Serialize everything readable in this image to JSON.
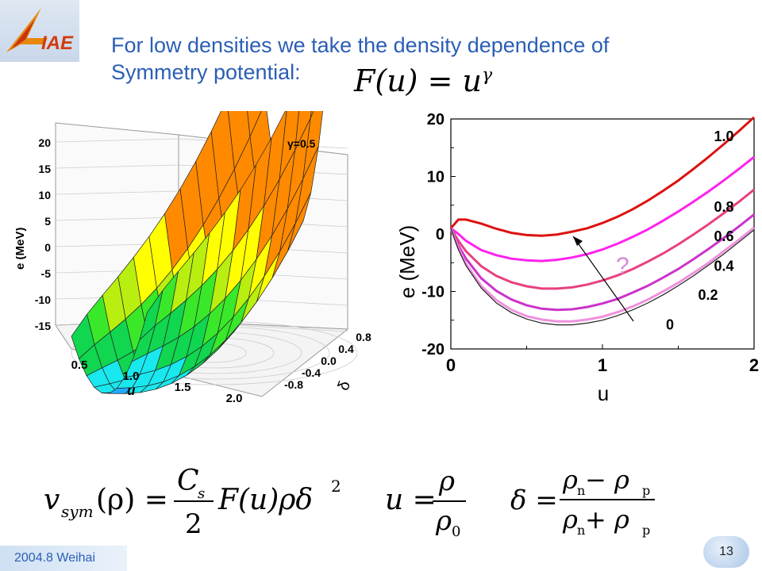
{
  "slide": {
    "logo_text": "IAE",
    "title_line1": "For low densities we take the density dependence of",
    "title_line2": "Symmetry potential:",
    "formula_top": {
      "lhs": "F(u) = u",
      "exp": "γ"
    },
    "footer_text": "2004.8 Weihai",
    "page_number": "13"
  },
  "chart_data": [
    {
      "type": "surface",
      "annotation": "γ=0.5",
      "zlabel": "e (MeV)",
      "xlabel": "u",
      "ylabel": "δ",
      "z_ticks": [
        "20",
        "15",
        "10",
        "5",
        "0",
        "-5",
        "-10",
        "-15"
      ],
      "x_ticks": [
        "0.5",
        "1.0",
        "1.5",
        "2.0"
      ],
      "y_ticks": [
        "0.8",
        "0.4",
        "0.0",
        "-0.4",
        "-0.8"
      ],
      "band_colors": [
        "#1e6bff",
        "#22aaff",
        "#19e8ee",
        "#10d650",
        "#3ae82a",
        "#b8ee10",
        "#ffff00",
        "#ff8a00"
      ]
    },
    {
      "type": "line",
      "xlabel": "u",
      "ylabel": "e (MeV)",
      "xlim": [
        0,
        2
      ],
      "ylim": [
        -20,
        20
      ],
      "x_ticks": [
        "0",
        "1",
        "2"
      ],
      "y_ticks": [
        "20",
        "10",
        "0",
        "-10",
        "-20"
      ],
      "annotation": "?",
      "series": [
        {
          "name": "1.0",
          "color": "#dd1111",
          "x": [
            0,
            0.05,
            0.1,
            0.2,
            0.3,
            0.4,
            0.5,
            0.6,
            0.7,
            0.8,
            0.9,
            1.0,
            1.1,
            1.2,
            1.3,
            1.4,
            1.5,
            1.6,
            1.7,
            1.8,
            1.9,
            2.0
          ],
          "y": [
            1.0,
            2.5,
            2.5,
            1.8,
            0.9,
            0.2,
            -0.2,
            -0.3,
            -0.1,
            0.4,
            1.0,
            1.9,
            3.0,
            4.3,
            5.8,
            7.5,
            9.3,
            11.3,
            13.4,
            15.6,
            17.9,
            20.3
          ]
        },
        {
          "name": "0.8",
          "color": "#ff22ee",
          "x": [
            0,
            0.05,
            0.1,
            0.2,
            0.3,
            0.4,
            0.5,
            0.6,
            0.7,
            0.8,
            0.9,
            1.0,
            1.1,
            1.2,
            1.3,
            1.4,
            1.5,
            1.6,
            1.7,
            1.8,
            1.9,
            2.0
          ],
          "y": [
            1.0,
            0.0,
            -1.2,
            -2.8,
            -3.7,
            -4.3,
            -4.6,
            -4.7,
            -4.5,
            -4.1,
            -3.5,
            -2.7,
            -1.7,
            -0.5,
            0.8,
            2.3,
            3.9,
            5.6,
            7.4,
            9.3,
            11.3,
            13.4
          ]
        },
        {
          "name": "0.6",
          "color": "#e84080",
          "x": [
            0,
            0.05,
            0.1,
            0.2,
            0.3,
            0.4,
            0.5,
            0.6,
            0.7,
            0.8,
            0.9,
            1.0,
            1.1,
            1.2,
            1.3,
            1.4,
            1.5,
            1.6,
            1.7,
            1.8,
            1.9,
            2.0
          ],
          "y": [
            1.0,
            -1.2,
            -3.0,
            -5.6,
            -7.3,
            -8.4,
            -9.1,
            -9.5,
            -9.5,
            -9.3,
            -8.8,
            -8.1,
            -7.2,
            -6.1,
            -4.8,
            -3.4,
            -1.8,
            -0.1,
            1.7,
            3.6,
            5.6,
            7.7
          ]
        },
        {
          "name": "0.4",
          "color": "#cc33cc",
          "x": [
            0,
            0.05,
            0.1,
            0.2,
            0.3,
            0.4,
            0.5,
            0.6,
            0.7,
            0.8,
            0.9,
            1.0,
            1.1,
            1.2,
            1.3,
            1.4,
            1.5,
            1.6,
            1.7,
            1.8,
            1.9,
            2.0
          ],
          "y": [
            1.0,
            -2.0,
            -4.3,
            -7.7,
            -9.9,
            -11.4,
            -12.4,
            -13.0,
            -13.2,
            -13.1,
            -12.7,
            -12.1,
            -11.3,
            -10.2,
            -9.0,
            -7.6,
            -6.1,
            -4.4,
            -2.6,
            -0.7,
            1.3,
            3.4
          ]
        },
        {
          "name": "0.2",
          "color": "#f090dd",
          "x": [
            0,
            0.05,
            0.1,
            0.2,
            0.3,
            0.4,
            0.5,
            0.6,
            0.7,
            0.8,
            0.9,
            1.0,
            1.1,
            1.2,
            1.3,
            1.4,
            1.5,
            1.6,
            1.7,
            1.8,
            1.9,
            2.0
          ],
          "y": [
            1.0,
            -2.5,
            -5.2,
            -9.0,
            -11.5,
            -13.2,
            -14.3,
            -14.9,
            -15.2,
            -15.2,
            -14.9,
            -14.4,
            -13.6,
            -12.6,
            -11.4,
            -10.0,
            -8.5,
            -6.8,
            -5.0,
            -3.0,
            -1.0,
            1.1
          ]
        },
        {
          "name": "0",
          "color": "#222222",
          "x": [
            0,
            0.05,
            0.1,
            0.2,
            0.3,
            0.4,
            0.5,
            0.6,
            0.7,
            0.8,
            0.9,
            1.0,
            1.1,
            1.2,
            1.3,
            1.4,
            1.5,
            1.6,
            1.7,
            1.8,
            1.9,
            2.0
          ],
          "y": [
            1.0,
            -2.7,
            -5.5,
            -9.4,
            -12.0,
            -13.7,
            -14.8,
            -15.5,
            -15.8,
            -15.8,
            -15.5,
            -15.0,
            -14.2,
            -13.2,
            -12.0,
            -10.6,
            -9.0,
            -7.3,
            -5.4,
            -3.5,
            -1.4,
            0.7
          ]
        }
      ],
      "label_y": [
        17.0,
        4.7,
        -0.4,
        -5.6,
        -10.6,
        -15.8
      ]
    }
  ],
  "formulas": {
    "vsym": {
      "lhs": "v",
      "lhs_sub": "sym",
      "arg": "(ρ) =",
      "num": "C",
      "num_sub": "s",
      "den": "2",
      "rest": "F(u)ρδ",
      "rest_sup": "2"
    },
    "u_def": {
      "lhs": "u =",
      "num": "ρ",
      "den": "ρ",
      "den_sub": "0"
    },
    "delta_def": {
      "lhs": "δ =",
      "num": "ρ",
      "num_sub1": "n",
      "num_op": " − ρ",
      "num_sub2": "p",
      "den": "ρ",
      "den_sub1": "n",
      "den_op": " + ρ",
      "den_sub2": "p"
    }
  }
}
